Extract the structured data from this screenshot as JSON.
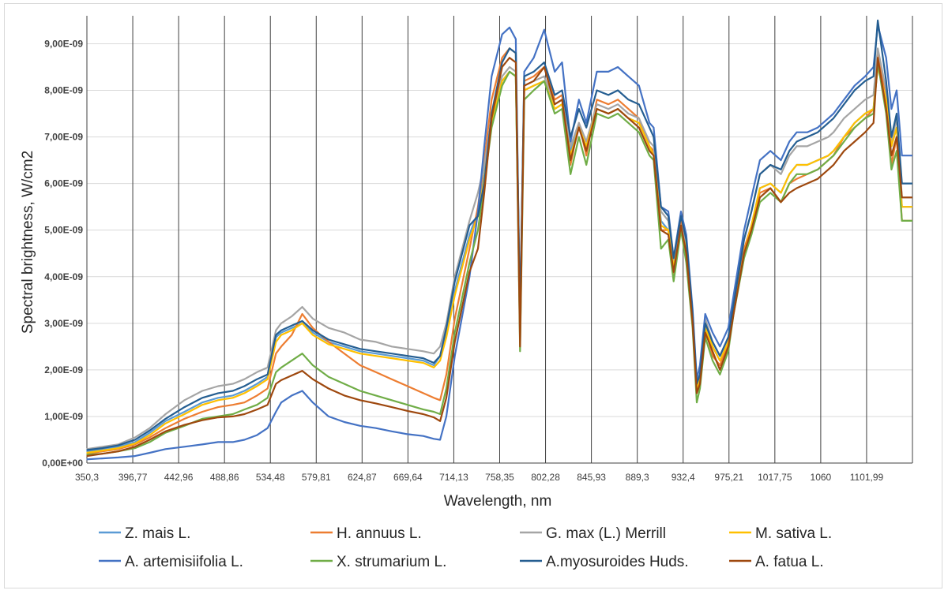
{
  "chart_data": {
    "type": "line",
    "title": "",
    "xlabel": "Wavelength, nm",
    "ylabel": "Spectral brightness, W/cm2",
    "x_tick_labels": [
      "350,3",
      "396,77",
      "442,96",
      "488,86",
      "534,48",
      "579,81",
      "624,87",
      "669,64",
      "714,13",
      "758,35",
      "802,28",
      "845,93",
      "889,3",
      "932,4",
      "975,21",
      "1017,75",
      "1060",
      "1101,99"
    ],
    "y_tick_labels": [
      "0,00E+00",
      "1,00E-09",
      "2,00E-09",
      "3,00E-09",
      "4,00E-09",
      "5,00E-09",
      "6,00E-09",
      "7,00E-09",
      "8,00E-09",
      "9,00E-09"
    ],
    "ylim": [
      0,
      9.6e-09
    ],
    "xlim": [
      350.3,
      1135
    ],
    "grid": true,
    "legend_position": "bottom",
    "x": [
      350,
      365,
      380,
      396,
      410,
      425,
      443,
      460,
      475,
      489,
      500,
      512,
      522,
      530,
      535,
      545,
      555,
      565,
      580,
      595,
      610,
      625,
      640,
      655,
      670,
      680,
      686,
      692,
      700,
      714,
      722,
      728,
      735,
      745,
      752,
      758,
      762,
      766,
      775,
      785,
      795,
      802,
      810,
      818,
      825,
      835,
      846,
      855,
      865,
      875,
      885,
      889,
      896,
      903,
      908,
      915,
      920,
      926,
      930,
      933,
      938,
      945,
      952,
      960,
      965,
      975,
      982,
      990,
      1000,
      1010,
      1018,
      1025,
      1035,
      1045,
      1055,
      1060,
      1070,
      1080,
      1090,
      1098,
      1102,
      1110,
      1115,
      1120,
      1125,
      1135
    ],
    "series": [
      {
        "name": "Z. mais L.",
        "color": "#5b9bd5",
        "values": [
          0.25,
          0.3,
          0.35,
          0.45,
          0.65,
          0.9,
          1.1,
          1.3,
          1.4,
          1.45,
          1.55,
          1.7,
          1.85,
          2.7,
          2.8,
          2.9,
          3.0,
          2.8,
          2.6,
          2.5,
          2.4,
          2.35,
          2.3,
          2.25,
          2.2,
          2.1,
          2.3,
          2.8,
          3.7,
          4.9,
          5.4,
          6.2,
          7.4,
          8.2,
          8.4,
          8.3,
          3.0,
          8.0,
          8.1,
          8.2,
          7.6,
          7.7,
          6.7,
          7.2,
          6.8,
          7.6,
          7.5,
          7.6,
          7.4,
          7.3,
          6.8,
          6.6,
          5.2,
          5.0,
          4.2,
          5.0,
          4.6,
          3.0,
          1.6,
          1.8,
          2.9,
          2.5,
          2.2,
          2.6,
          3.3,
          4.5,
          5.1,
          5.9,
          6.0,
          5.8,
          6.2,
          6.4,
          6.4,
          6.5,
          6.6,
          6.7,
          7.0,
          7.3,
          7.5,
          7.6,
          8.5,
          7.8,
          6.8,
          7.2,
          5.5,
          5.5
        ]
      },
      {
        "name": "H. annuus L.",
        "color": "#ed7d31",
        "values": [
          0.2,
          0.25,
          0.3,
          0.4,
          0.55,
          0.75,
          0.95,
          1.1,
          1.2,
          1.25,
          1.3,
          1.45,
          1.6,
          2.35,
          2.5,
          2.75,
          3.2,
          2.9,
          2.6,
          2.35,
          2.1,
          1.95,
          1.8,
          1.65,
          1.5,
          1.4,
          1.35,
          1.9,
          3.1,
          4.6,
          5.5,
          6.5,
          7.8,
          8.7,
          8.9,
          8.8,
          2.9,
          8.2,
          8.3,
          8.5,
          7.8,
          7.9,
          6.4,
          7.3,
          6.6,
          7.8,
          7.7,
          7.8,
          7.6,
          7.4,
          6.8,
          6.7,
          5.0,
          5.0,
          4.0,
          5.2,
          4.5,
          3.1,
          1.5,
          1.8,
          2.9,
          2.3,
          2.1,
          2.6,
          3.4,
          4.6,
          5.1,
          5.8,
          5.9,
          5.6,
          6.0,
          6.1,
          6.2,
          6.3,
          6.5,
          6.6,
          7.0,
          7.2,
          7.4,
          7.6,
          8.8,
          7.8,
          6.4,
          7.0,
          5.2,
          5.2
        ]
      },
      {
        "name": "G. max (L.) Merrill",
        "color": "#a5a5a5",
        "values": [
          0.3,
          0.35,
          0.4,
          0.55,
          0.75,
          1.05,
          1.35,
          1.55,
          1.65,
          1.7,
          1.8,
          1.95,
          2.05,
          2.85,
          3.0,
          3.15,
          3.35,
          3.1,
          2.9,
          2.8,
          2.65,
          2.6,
          2.5,
          2.45,
          2.4,
          2.35,
          2.5,
          3.0,
          4.0,
          5.2,
          5.8,
          6.4,
          7.4,
          8.3,
          8.5,
          8.4,
          3.1,
          8.1,
          8.2,
          8.3,
          7.7,
          7.8,
          6.8,
          7.3,
          6.9,
          7.7,
          7.6,
          7.7,
          7.5,
          7.4,
          6.9,
          6.8,
          5.4,
          5.2,
          4.3,
          5.1,
          4.7,
          3.2,
          1.7,
          1.9,
          3.1,
          2.6,
          2.3,
          2.7,
          3.4,
          4.8,
          5.4,
          6.2,
          6.4,
          6.2,
          6.6,
          6.8,
          6.8,
          6.9,
          7.0,
          7.1,
          7.4,
          7.6,
          7.8,
          7.9,
          8.9,
          8.0,
          6.9,
          7.4,
          5.7,
          5.7
        ]
      },
      {
        "name": "M. sativa L.",
        "color": "#ffc000",
        "values": [
          0.22,
          0.27,
          0.32,
          0.42,
          0.6,
          0.85,
          1.05,
          1.25,
          1.35,
          1.4,
          1.5,
          1.65,
          1.8,
          2.6,
          2.75,
          2.85,
          3.0,
          2.75,
          2.55,
          2.45,
          2.35,
          2.3,
          2.25,
          2.2,
          2.15,
          2.05,
          2.2,
          2.7,
          3.6,
          4.8,
          5.3,
          6.1,
          7.3,
          8.2,
          8.4,
          8.3,
          2.9,
          8.0,
          8.1,
          8.2,
          7.6,
          7.7,
          6.6,
          7.2,
          6.8,
          7.6,
          7.5,
          7.6,
          7.4,
          7.3,
          6.8,
          6.6,
          5.1,
          5.0,
          4.2,
          5.0,
          4.6,
          3.0,
          1.6,
          1.8,
          2.9,
          2.5,
          2.2,
          2.6,
          3.3,
          4.5,
          5.1,
          5.9,
          6.0,
          5.8,
          6.2,
          6.4,
          6.4,
          6.5,
          6.6,
          6.7,
          7.0,
          7.3,
          7.5,
          7.6,
          8.5,
          7.8,
          6.8,
          7.2,
          5.5,
          5.5
        ]
      },
      {
        "name": "A. artemisiifolia L.",
        "color": "#4472c4",
        "values": [
          0.08,
          0.1,
          0.12,
          0.15,
          0.22,
          0.3,
          0.35,
          0.4,
          0.45,
          0.45,
          0.5,
          0.6,
          0.75,
          1.1,
          1.3,
          1.45,
          1.55,
          1.3,
          1.0,
          0.88,
          0.8,
          0.75,
          0.68,
          0.62,
          0.58,
          0.52,
          0.5,
          1.0,
          2.3,
          4.0,
          5.4,
          6.8,
          8.3,
          9.2,
          9.35,
          9.1,
          3.0,
          8.4,
          8.7,
          9.3,
          8.4,
          8.6,
          6.9,
          7.8,
          7.3,
          8.4,
          8.4,
          8.5,
          8.3,
          8.1,
          7.3,
          7.2,
          5.5,
          5.4,
          4.4,
          5.4,
          4.9,
          3.3,
          1.8,
          2.1,
          3.2,
          2.8,
          2.5,
          2.9,
          3.6,
          5.0,
          5.7,
          6.5,
          6.7,
          6.5,
          6.9,
          7.1,
          7.1,
          7.2,
          7.4,
          7.5,
          7.8,
          8.1,
          8.3,
          8.5,
          9.4,
          8.7,
          7.6,
          8.0,
          6.6,
          6.6
        ]
      },
      {
        "name": "X. strumarium L.",
        "color": "#70ad47",
        "values": [
          0.18,
          0.2,
          0.25,
          0.32,
          0.45,
          0.65,
          0.8,
          0.95,
          1.0,
          1.05,
          1.15,
          1.25,
          1.4,
          1.95,
          2.05,
          2.2,
          2.35,
          2.1,
          1.85,
          1.7,
          1.55,
          1.45,
          1.35,
          1.25,
          1.15,
          1.1,
          1.05,
          1.6,
          2.8,
          4.3,
          5.0,
          6.0,
          7.2,
          8.1,
          8.4,
          8.3,
          2.4,
          7.8,
          8.0,
          8.2,
          7.5,
          7.6,
          6.2,
          7.0,
          6.4,
          7.5,
          7.4,
          7.5,
          7.3,
          7.1,
          6.6,
          6.5,
          4.6,
          4.8,
          3.9,
          5.0,
          4.3,
          2.9,
          1.3,
          1.6,
          2.7,
          2.2,
          1.9,
          2.4,
          3.2,
          4.4,
          4.9,
          5.6,
          5.8,
          5.6,
          6.0,
          6.2,
          6.2,
          6.3,
          6.5,
          6.6,
          6.9,
          7.2,
          7.4,
          7.5,
          8.6,
          7.5,
          6.3,
          6.7,
          5.2,
          5.2
        ]
      },
      {
        "name": "A.myosuroides Huds.",
        "color": "#255e91",
        "values": [
          0.28,
          0.32,
          0.38,
          0.5,
          0.7,
          0.95,
          1.2,
          1.4,
          1.5,
          1.55,
          1.65,
          1.8,
          1.9,
          2.75,
          2.85,
          2.95,
          3.05,
          2.85,
          2.65,
          2.55,
          2.45,
          2.4,
          2.35,
          2.3,
          2.25,
          2.15,
          2.3,
          2.9,
          3.9,
          5.1,
          5.3,
          6.0,
          7.5,
          8.6,
          8.9,
          8.8,
          3.1,
          8.3,
          8.4,
          8.6,
          7.9,
          8.0,
          7.0,
          7.6,
          7.2,
          8.0,
          7.9,
          8.0,
          7.8,
          7.7,
          7.2,
          7.0,
          5.5,
          5.3,
          4.4,
          5.3,
          4.8,
          3.2,
          1.7,
          1.9,
          3.0,
          2.6,
          2.3,
          2.7,
          3.4,
          4.8,
          5.4,
          6.2,
          6.4,
          6.3,
          6.7,
          6.9,
          7.0,
          7.1,
          7.3,
          7.4,
          7.7,
          8.0,
          8.2,
          8.3,
          9.5,
          8.2,
          7.0,
          7.5,
          6.0,
          6.0
        ]
      },
      {
        "name": "A. fatua L.",
        "color": "#9e480e",
        "values": [
          0.15,
          0.2,
          0.25,
          0.35,
          0.5,
          0.68,
          0.82,
          0.92,
          0.98,
          1.0,
          1.05,
          1.15,
          1.25,
          1.7,
          1.78,
          1.88,
          1.98,
          1.8,
          1.6,
          1.45,
          1.35,
          1.28,
          1.2,
          1.12,
          1.05,
          0.98,
          0.9,
          1.4,
          2.6,
          4.1,
          4.6,
          5.8,
          7.4,
          8.5,
          8.7,
          8.6,
          2.5,
          8.1,
          8.2,
          8.5,
          7.7,
          7.8,
          6.5,
          7.2,
          6.7,
          7.6,
          7.5,
          7.6,
          7.4,
          7.2,
          6.7,
          6.6,
          5.0,
          4.9,
          4.1,
          5.1,
          4.5,
          3.0,
          1.5,
          1.7,
          2.8,
          2.4,
          2.0,
          2.5,
          3.2,
          4.5,
          5.0,
          5.7,
          5.9,
          5.6,
          5.8,
          5.9,
          6.0,
          6.1,
          6.3,
          6.4,
          6.7,
          6.9,
          7.1,
          7.3,
          8.7,
          7.6,
          6.6,
          7.0,
          5.7,
          5.7
        ]
      }
    ]
  }
}
